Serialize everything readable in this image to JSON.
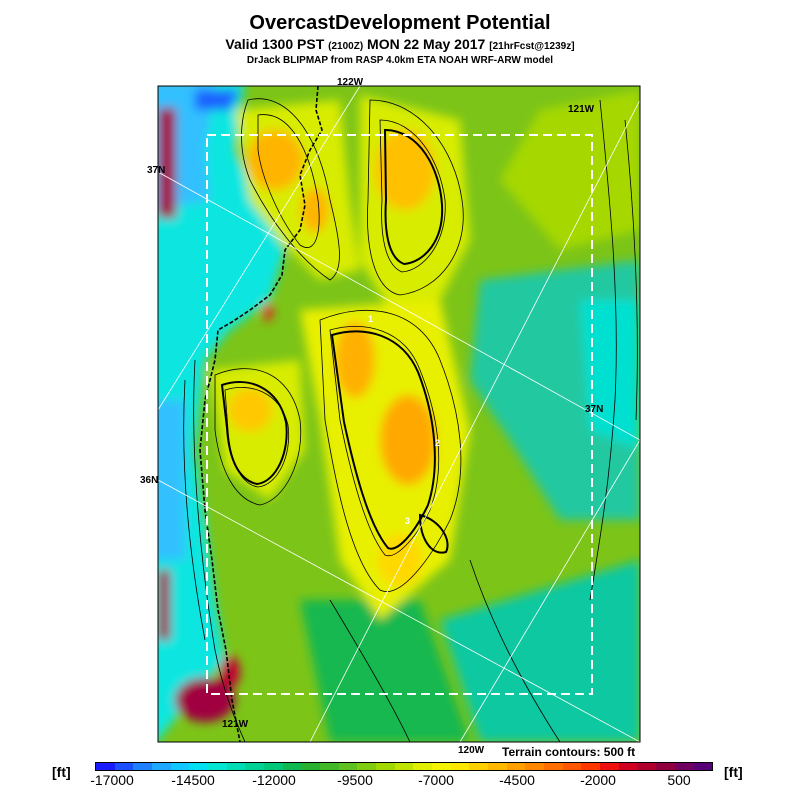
{
  "title": "OvercastDevelopment Potential",
  "subtitle": {
    "prefix": "Valid 1300 PST",
    "zulu": "(2100Z)",
    "date": "MON 22 May 2017",
    "forecast": "[21hrFcst@1239z]"
  },
  "source_line": "DrJack BLIPMAP from RASP 4.0km ETA NOAH WRF-ARW model",
  "map": {
    "grid_labels": {
      "lon_122_top": "122W",
      "lon_121_top": "121W",
      "lon_121_bottom": "121W",
      "lon_120_bottom": "120W",
      "lat_37_left": "37N",
      "lat_37_right": "37N",
      "lat_36_left": "36N"
    },
    "contour_labels": [
      "1",
      "2",
      "3"
    ],
    "terrain_note": "Terrain contours: 500 ft"
  },
  "colorbar": {
    "unit_left": "[ft]",
    "unit_right": "[ft]",
    "tick_labels": [
      "-17000",
      "-14500",
      "-12000",
      "-9500",
      "-7000",
      "-4500",
      "-2000",
      "500"
    ],
    "colors": [
      "#1a1aff",
      "#1a50ff",
      "#1e80ff",
      "#1ea8ff",
      "#10c8ff",
      "#00e0f0",
      "#00e6d2",
      "#00dcb4",
      "#00d296",
      "#00c878",
      "#10b850",
      "#28b030",
      "#40b828",
      "#60c020",
      "#80cc10",
      "#a0d800",
      "#c0e400",
      "#e0ee00",
      "#f4f400",
      "#ffe800",
      "#ffd000",
      "#ffb800",
      "#ffa000",
      "#ff8800",
      "#ff7000",
      "#ff5800",
      "#ff3800",
      "#f01010",
      "#d00020",
      "#b00030",
      "#900040",
      "#700060",
      "#580078"
    ]
  }
}
